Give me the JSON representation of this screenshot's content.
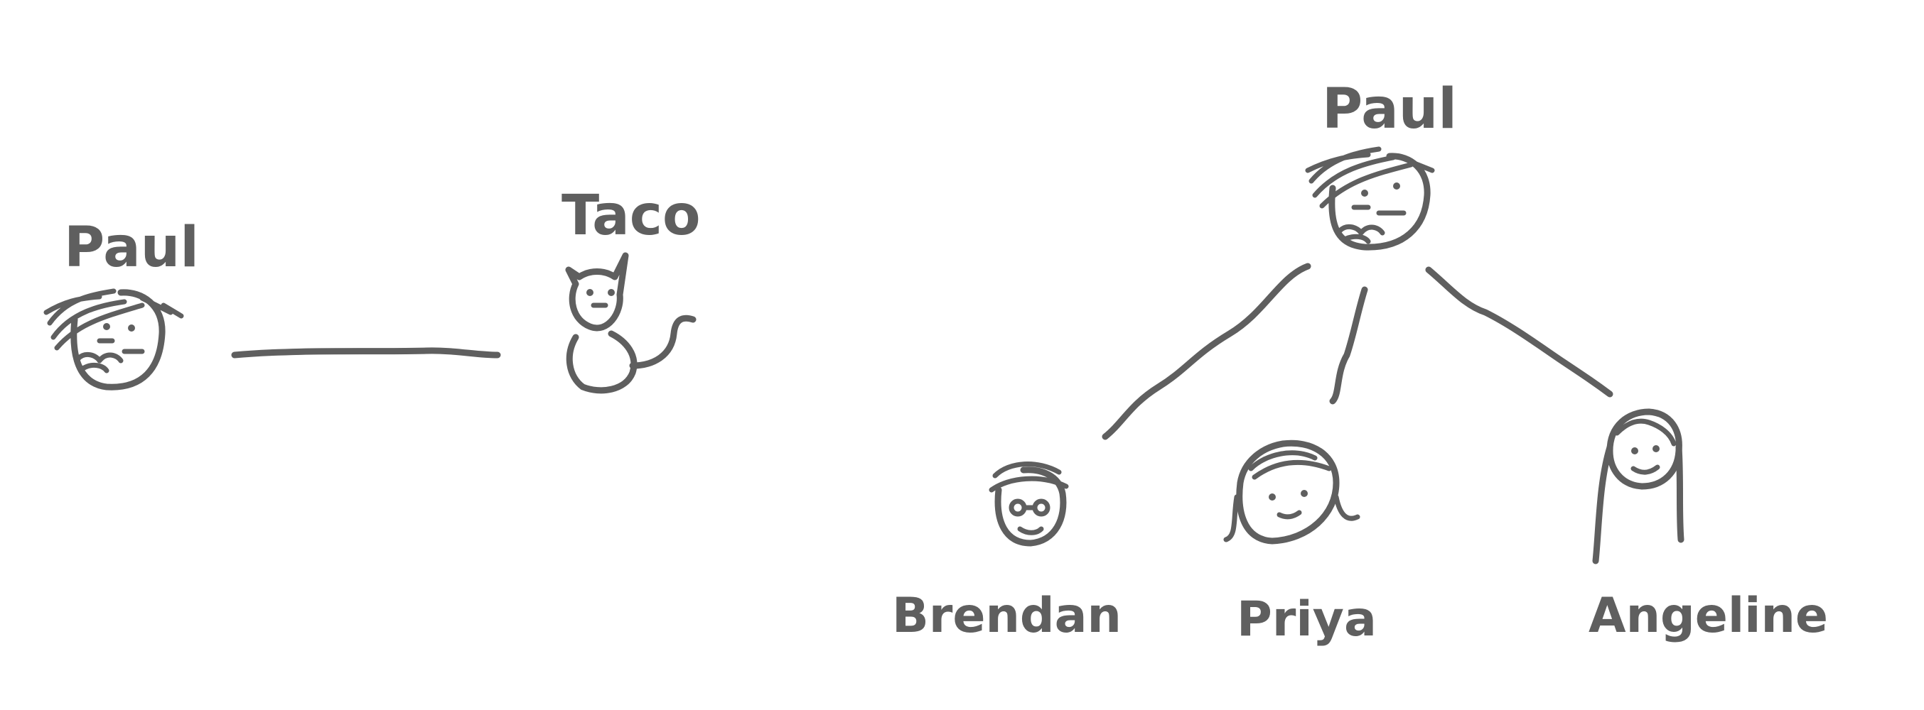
{
  "people": {
    "paul_left": {
      "name": "Paul"
    },
    "pet": {
      "name": "Taco"
    },
    "paul_parent": {
      "name": "Paul"
    },
    "children": [
      {
        "name": "Brendan"
      },
      {
        "name": "Priya"
      },
      {
        "name": "Angeline"
      }
    ]
  },
  "colors": {
    "ink": "#5f5f5f",
    "background": "#ffffff"
  }
}
